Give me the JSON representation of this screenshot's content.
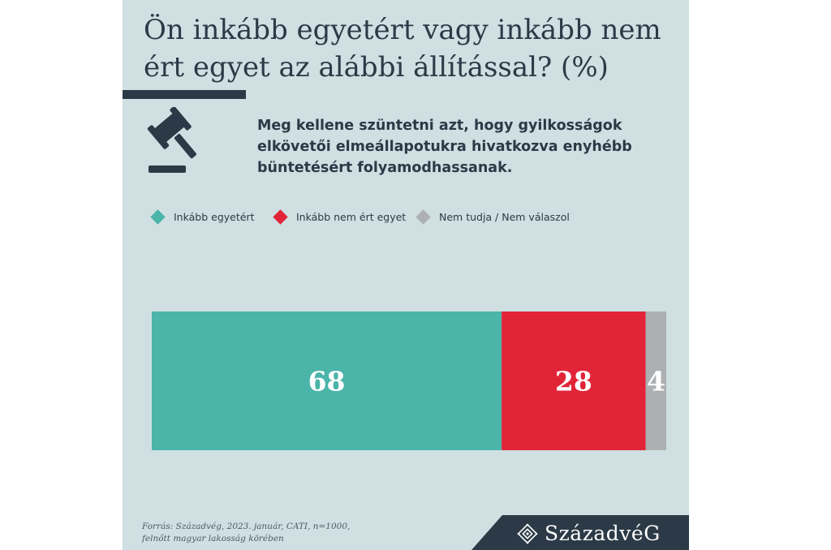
{
  "header": {
    "title": "Ön inkább egyetért vagy inkább nem ért egyet az alábbi állítással? (%)"
  },
  "question": "Meg kellene szüntetni azt, hogy gyilkosságok elkövetői elmeállapotukra hivatkozva enyhébb büntetésért folyamodhassanak.",
  "icons": {
    "question": "gavel-icon",
    "logo": "ornament-icon"
  },
  "chart_data": {
    "type": "bar",
    "orientation": "horizontal-stacked",
    "categories": [
      ""
    ],
    "series": [
      {
        "name": "Inkább egyetért",
        "values": [
          68
        ],
        "color": "#4bb5aa"
      },
      {
        "name": "Inkább nem ért egyet",
        "values": [
          28
        ],
        "color": "#e22438"
      },
      {
        "name": "Nem tudja / Nem válaszol",
        "values": [
          4
        ],
        "color": "#adb0b2"
      }
    ],
    "data_labels": [
      "68",
      "28",
      "4"
    ],
    "xlim": [
      0,
      100
    ],
    "legend": "top",
    "grid": false
  },
  "footer": {
    "source_line1": "Forrás: Századvég, 2023. január, CATI, n=1000,",
    "source_line2": "felnőtt magyar lakosság körében",
    "brand": "SzázadvéG"
  },
  "colors": {
    "background": "#cfdfe2",
    "dark": "#2b3a46"
  }
}
